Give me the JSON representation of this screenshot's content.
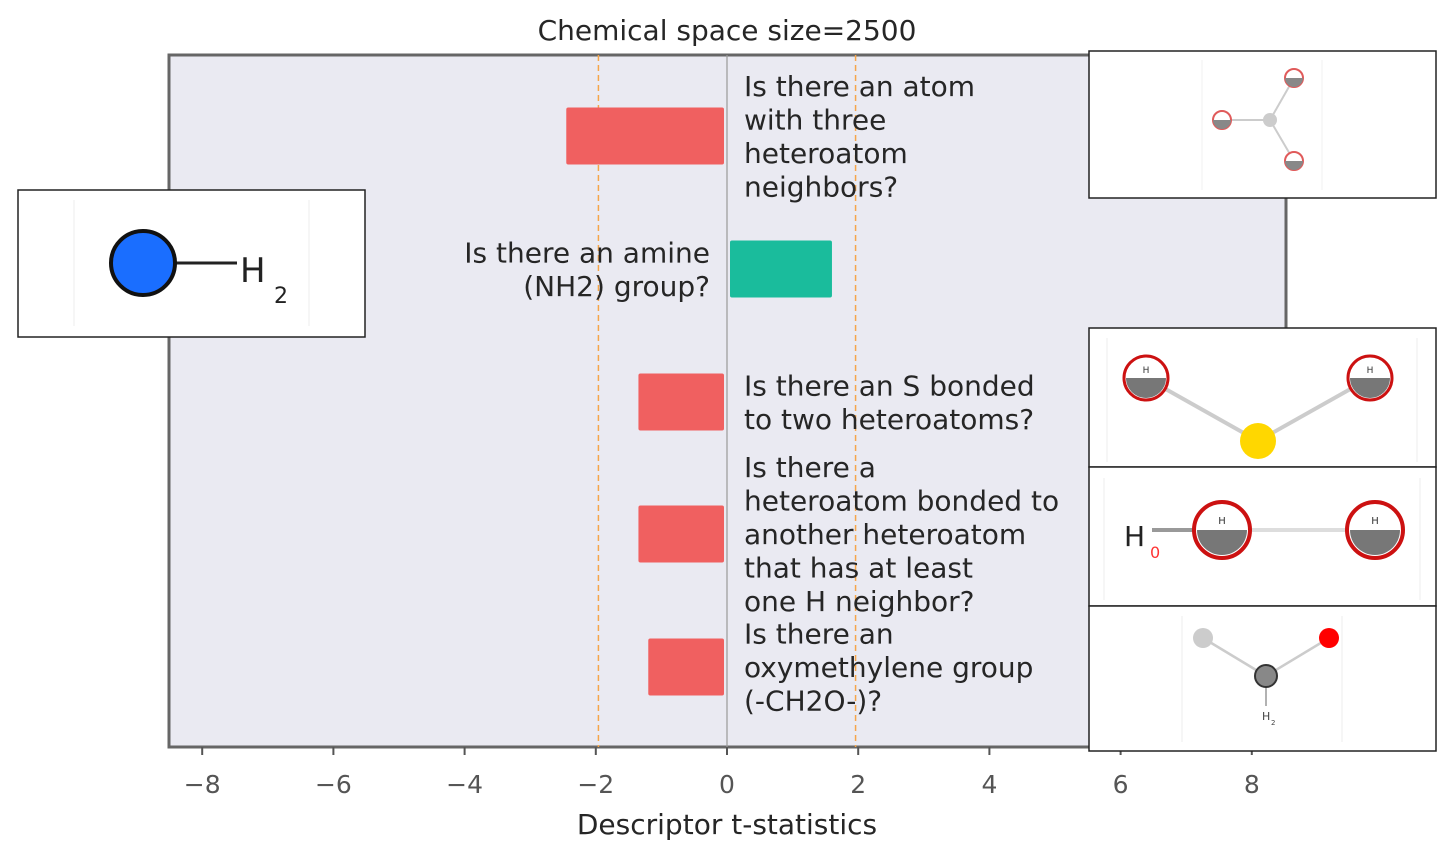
{
  "chart_data": {
    "type": "bar",
    "orientation": "horizontal",
    "title": "Chemical space size=2500",
    "xlabel": "Descriptor t-statistics",
    "ylabel": "",
    "xlim": [
      -8.5,
      8.7
    ],
    "xticks": [
      "−8",
      "−6",
      "−4",
      "−2",
      "0",
      "2",
      "4",
      "6",
      "8"
    ],
    "xtick_values": [
      -8,
      -6,
      -4,
      -2,
      0,
      2,
      4,
      6,
      8
    ],
    "threshold_lines": [
      -1.96,
      1.96
    ],
    "colors": {
      "negative": "#F06060",
      "positive": "#1ABC9C",
      "threshold": "#F5A54A",
      "plot_bg": "#EAEAF2",
      "zero_line": "#999999"
    },
    "categories": [
      "Is there an atom with three heteroatom neighbors?",
      "Is there an amine (NH2) group?",
      "Is there an S bonded to two heteroatoms?",
      "Is there a heteroatom bonded to another heteroatom that has at least one H neighbor?",
      "Is there an oxymethylene group (-CH2O-)?"
    ],
    "values": [
      -2.45,
      1.6,
      -1.35,
      -1.35,
      -1.2
    ],
    "label_lines": [
      [
        "Is there an atom",
        "with three",
        "heteroatom",
        "neighbors?"
      ],
      [
        "Is there an amine",
        "(NH2) group?"
      ],
      [
        "Is there an S bonded",
        "to two heteroatoms?"
      ],
      [
        "Is there a",
        "heteroatom bonded to",
        "another heteroatom",
        "that has at least",
        "one H neighbor?"
      ],
      [
        "Is there an",
        "oxymethylene group",
        "(-CH2O-)?"
      ]
    ],
    "grid": false,
    "legend": "none"
  },
  "molecule_insets": [
    {
      "label_main": "H",
      "label_sub": "2",
      "atom_color": "#1A6EFF",
      "name": "amine-inset"
    },
    {
      "name": "atom-three-hetero-inset"
    },
    {
      "label_atom_small": "H",
      "name": "s-bonded-inset",
      "atom_color": "#FFD700"
    },
    {
      "label_main": "H",
      "label_sub": "0",
      "label_atom_small": "H",
      "name": "hetero-hetero-inset"
    },
    {
      "label_small": "H",
      "label_small_sub": "2",
      "name": "oxymethylene-inset",
      "atom_color": "#FF0000"
    }
  ]
}
